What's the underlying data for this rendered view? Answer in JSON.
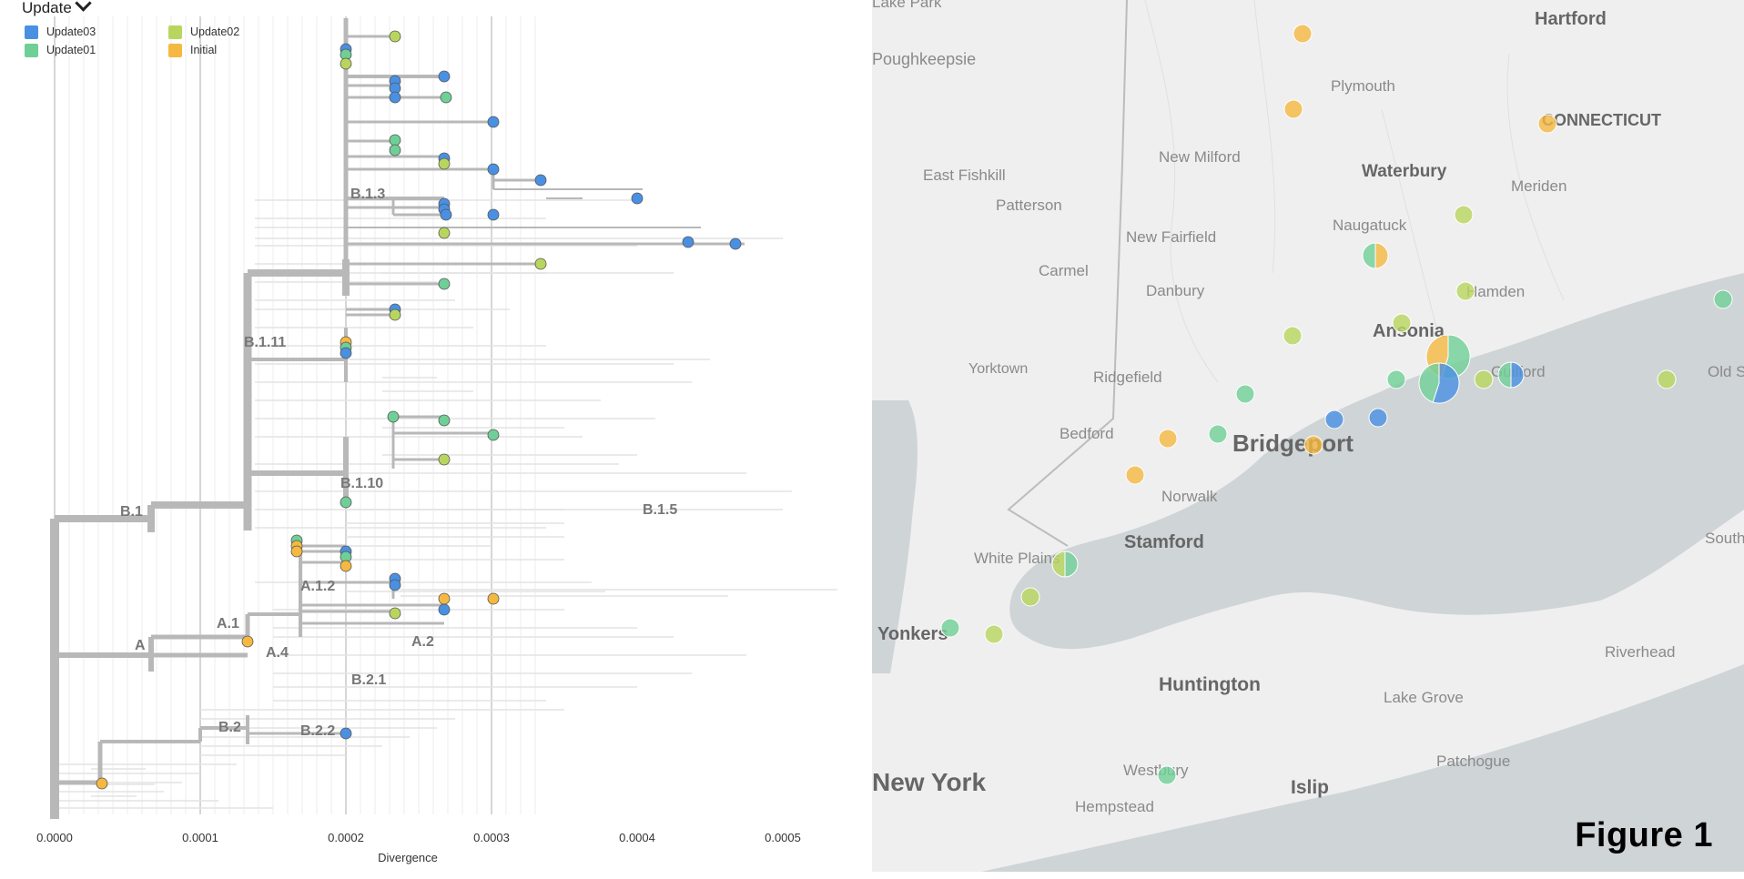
{
  "legend": {
    "title": "Update",
    "items": [
      {
        "label": "Update03",
        "color": "#4a90e2"
      },
      {
        "label": "Update02",
        "color": "#b8d65e"
      },
      {
        "label": "Update01",
        "color": "#6fcf97"
      },
      {
        "label": "Initial",
        "color": "#f5b841"
      }
    ]
  },
  "tree": {
    "x_axis": {
      "label": "Divergence",
      "ticks": [
        "0.0000",
        "0.0001",
        "0.0002",
        "0.0003",
        "0.0004",
        "0.0005"
      ]
    },
    "clades": [
      "B.1.3",
      "B.1.11",
      "B.1.10",
      "B.1",
      "B.1.5",
      "A.1.2",
      "A.1",
      "A",
      "A.4",
      "A.2",
      "B.2.1",
      "B.2",
      "B.2.2"
    ]
  },
  "map": {
    "places": [
      "Poughkeepsie",
      "Hartford",
      "Plymouth",
      "CONNECTICUT",
      "East Fishkill",
      "New Milford",
      "Waterbury",
      "Meriden",
      "Patterson",
      "Naugatuck",
      "New Fairfield",
      "Carmel",
      "Danbury",
      "Hamden",
      "Ansonia",
      "Yorktown",
      "Ridgefield",
      "Guilford",
      "Old Saybrook",
      "Bedford",
      "Bridgeport",
      "Norwalk",
      "White Plains",
      "Stamford",
      "Yonkers",
      "Huntington",
      "Lake Grove",
      "Riverhead",
      "Southold",
      "New York",
      "Westbury",
      "Islip",
      "Patchogue",
      "Hempstead",
      "Lake Park"
    ]
  },
  "figure_label": "Figure 1"
}
